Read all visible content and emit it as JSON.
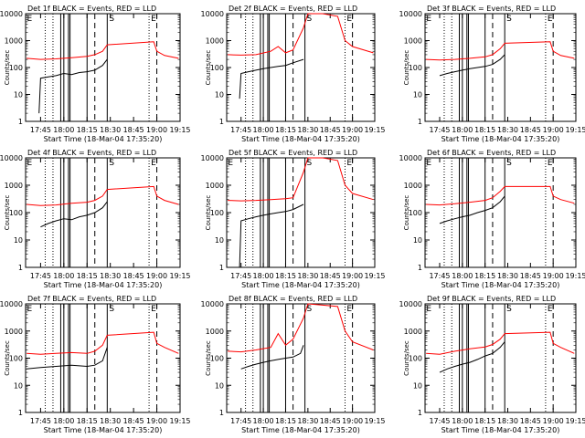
{
  "figure": {
    "x_axis_title": "Start Time (18-Mar-04 17:35:20)",
    "y_axis_title": "Counts/sec",
    "series_names": {
      "events": "BLACK = Events",
      "lld": "RED = LLD"
    },
    "colors": {
      "events": "#000000",
      "lld": "#ff0000",
      "axes": "#000000",
      "background": "#ffffff"
    }
  },
  "chart_data": [
    {
      "type": "line",
      "panel_label": "Det 1f",
      "title": "Det 1f BLACK = Events, RED = LLD",
      "x_tick_labels": [
        "17:45",
        "18:00",
        "18:15",
        "18:30",
        "18:45",
        "19:00",
        "19:15"
      ],
      "y_tick_labels": [
        "1",
        "10",
        "100",
        "1000",
        "10000"
      ],
      "xlim": [
        "17:35:20",
        "19:15"
      ],
      "ylim": [
        1,
        10000
      ],
      "yscale": "log",
      "xlabel": "Start Time (18-Mar-04 17:35:20)",
      "ylabel": "Counts/sec",
      "top_markers": [
        "E",
        "S",
        "E"
      ],
      "series": [
        {
          "name": "BLACK = Events",
          "color": "#000000",
          "x": [
            "17:44",
            "17:45",
            "17:50",
            "17:55",
            "18:00",
            "18:05",
            "18:10",
            "18:15",
            "18:20",
            "18:25",
            "18:28"
          ],
          "y": [
            2,
            40,
            45,
            50,
            60,
            55,
            65,
            70,
            80,
            120,
            200
          ]
        },
        {
          "name": "RED = LLD",
          "color": "#ff0000",
          "x": [
            "17:36",
            "17:45",
            "17:55",
            "18:05",
            "18:15",
            "18:20",
            "18:25",
            "18:28",
            "18:58",
            "19:00",
            "19:05",
            "19:14"
          ],
          "y": [
            220,
            200,
            210,
            230,
            260,
            300,
            400,
            700,
            900,
            400,
            280,
            220
          ]
        }
      ]
    },
    {
      "type": "line",
      "panel_label": "Det 2f",
      "title": "Det 2f BLACK = Events, RED = LLD",
      "x_tick_labels": [
        "17:45",
        "18:00",
        "18:15",
        "18:30",
        "18:45",
        "19:00",
        "19:15"
      ],
      "y_tick_labels": [
        "1",
        "10",
        "100",
        "1000",
        "10000"
      ],
      "xlim": [
        "17:35:20",
        "19:15"
      ],
      "ylim": [
        1,
        10000
      ],
      "yscale": "log",
      "xlabel": "Start Time (18-Mar-04 17:35:20)",
      "ylabel": "Counts/sec",
      "top_markers": [
        "S",
        "E"
      ],
      "series": [
        {
          "name": "BLACK = Events",
          "color": "#000000",
          "x": [
            "17:44",
            "17:45",
            "17:50",
            "17:55",
            "18:00",
            "18:05",
            "18:10",
            "18:15",
            "18:20",
            "18:27"
          ],
          "y": [
            7,
            60,
            70,
            80,
            90,
            100,
            110,
            120,
            150,
            200
          ]
        },
        {
          "name": "RED = LLD",
          "color": "#ff0000",
          "x": [
            "17:36",
            "17:45",
            "17:55",
            "18:05",
            "18:10",
            "18:15",
            "18:20",
            "18:27",
            "18:30",
            "18:40",
            "18:50",
            "18:55",
            "19:00",
            "19:14"
          ],
          "y": [
            300,
            290,
            300,
            400,
            600,
            350,
            450,
            3000,
            10000,
            10000,
            8000,
            1000,
            600,
            350
          ]
        }
      ]
    },
    {
      "type": "line",
      "panel_label": "Det 3f",
      "title": "Det 3f BLACK = Events, RED = LLD",
      "x_tick_labels": [
        "17:45",
        "18:00",
        "18:15",
        "18:30",
        "18:45",
        "19:00",
        "19:15"
      ],
      "y_tick_labels": [
        "1",
        "10",
        "100",
        "1000",
        "10000"
      ],
      "xlim": [
        "17:35:20",
        "19:15"
      ],
      "ylim": [
        1,
        10000
      ],
      "yscale": "log",
      "xlabel": "Start Time (18-Mar-04 17:35:20)",
      "ylabel": "Counts/sec",
      "top_markers": [
        "E",
        "S",
        "E"
      ],
      "series": [
        {
          "name": "BLACK = Events",
          "color": "#000000",
          "x": [
            "17:45",
            "17:50",
            "17:55",
            "18:00",
            "18:05",
            "18:10",
            "18:15",
            "18:20",
            "18:25",
            "18:28"
          ],
          "y": [
            50,
            60,
            70,
            80,
            90,
            100,
            110,
            130,
            200,
            300
          ]
        },
        {
          "name": "RED = LLD",
          "color": "#ff0000",
          "x": [
            "17:36",
            "17:45",
            "17:55",
            "18:05",
            "18:15",
            "18:20",
            "18:25",
            "18:28",
            "18:58",
            "19:00",
            "19:05",
            "19:14"
          ],
          "y": [
            200,
            190,
            200,
            220,
            250,
            300,
            500,
            800,
            900,
            400,
            280,
            220
          ]
        }
      ]
    },
    {
      "type": "line",
      "panel_label": "Det 4f",
      "title": "Det 4f BLACK = Events, RED = LLD",
      "x_tick_labels": [
        "17:45",
        "18:00",
        "18:15",
        "18:30",
        "18:45",
        "19:00",
        "19:15"
      ],
      "y_tick_labels": [
        "1",
        "10",
        "100",
        "1000",
        "10000"
      ],
      "xlim": [
        "17:35:20",
        "19:15"
      ],
      "ylim": [
        1,
        10000
      ],
      "yscale": "log",
      "xlabel": "Start Time (18-Mar-04 17:35:20)",
      "ylabel": "Counts/sec",
      "top_markers": [
        "E",
        "S",
        "E"
      ],
      "series": [
        {
          "name": "BLACK = Events",
          "color": "#000000",
          "x": [
            "17:45",
            "17:50",
            "17:55",
            "18:00",
            "18:05",
            "18:10",
            "18:15",
            "18:20",
            "18:25",
            "18:28"
          ],
          "y": [
            30,
            40,
            50,
            60,
            55,
            70,
            80,
            100,
            150,
            250
          ]
        },
        {
          "name": "RED = LLD",
          "color": "#ff0000",
          "x": [
            "17:36",
            "17:45",
            "17:55",
            "18:05",
            "18:15",
            "18:20",
            "18:25",
            "18:28",
            "18:58",
            "19:00",
            "19:05",
            "19:14"
          ],
          "y": [
            200,
            180,
            190,
            220,
            240,
            280,
            400,
            700,
            900,
            400,
            280,
            200
          ]
        }
      ]
    },
    {
      "type": "line",
      "panel_label": "Det 5f",
      "title": "Det 5f BLACK = Events, RED = LLD",
      "x_tick_labels": [
        "17:45",
        "18:00",
        "18:15",
        "18:30",
        "18:45",
        "19:00",
        "19:15"
      ],
      "y_tick_labels": [
        "1",
        "10",
        "100",
        "1000",
        "10000"
      ],
      "xlim": [
        "17:35:20",
        "19:15"
      ],
      "ylim": [
        1,
        10000
      ],
      "yscale": "log",
      "xlabel": "Start Time (18-Mar-04 17:35:20)",
      "ylabel": "Counts/sec",
      "top_markers": [
        "E",
        "S",
        "E"
      ],
      "series": [
        {
          "name": "BLACK = Events",
          "color": "#000000",
          "x": [
            "17:44",
            "17:45",
            "17:50",
            "17:55",
            "18:00",
            "18:05",
            "18:10",
            "18:15",
            "18:20",
            "18:27"
          ],
          "y": [
            1,
            50,
            60,
            70,
            80,
            90,
            100,
            110,
            130,
            200
          ]
        },
        {
          "name": "RED = LLD",
          "color": "#ff0000",
          "x": [
            "17:36",
            "17:45",
            "17:55",
            "18:05",
            "18:15",
            "18:20",
            "18:27",
            "18:30",
            "18:40",
            "18:50",
            "18:55",
            "19:00",
            "19:14"
          ],
          "y": [
            280,
            270,
            280,
            300,
            320,
            350,
            3000,
            10000,
            10000,
            8000,
            1000,
            500,
            300
          ]
        }
      ]
    },
    {
      "type": "line",
      "panel_label": "Det 6f",
      "title": "Det 6f BLACK = Events, RED = LLD",
      "x_tick_labels": [
        "17:45",
        "18:00",
        "18:15",
        "18:30",
        "18:45",
        "19:00",
        "19:15"
      ],
      "y_tick_labels": [
        "1",
        "10",
        "100",
        "1000",
        "10000"
      ],
      "xlim": [
        "17:35:20",
        "19:15"
      ],
      "ylim": [
        1,
        10000
      ],
      "yscale": "log",
      "xlabel": "Start Time (18-Mar-04 17:35:20)",
      "ylabel": "Counts/sec",
      "top_markers": [
        "E",
        "S",
        "E"
      ],
      "series": [
        {
          "name": "BLACK = Events",
          "color": "#000000",
          "x": [
            "17:45",
            "17:50",
            "17:55",
            "18:00",
            "18:05",
            "18:10",
            "18:15",
            "18:20",
            "18:25",
            "18:28"
          ],
          "y": [
            40,
            50,
            60,
            70,
            80,
            100,
            120,
            150,
            250,
            400
          ]
        },
        {
          "name": "RED = LLD",
          "color": "#ff0000",
          "x": [
            "17:36",
            "17:45",
            "17:55",
            "18:05",
            "18:15",
            "18:20",
            "18:25",
            "18:28",
            "18:58",
            "19:00",
            "19:05",
            "19:14"
          ],
          "y": [
            200,
            190,
            210,
            240,
            280,
            350,
            600,
            900,
            900,
            400,
            300,
            220
          ]
        }
      ]
    },
    {
      "type": "line",
      "panel_label": "Det 7f",
      "title": "Det 7f BLACK = Events, RED = LLD",
      "x_tick_labels": [
        "17:45",
        "18:00",
        "18:15",
        "18:30",
        "18:45",
        "19:00",
        "19:15"
      ],
      "y_tick_labels": [
        "1",
        "10",
        "100",
        "1000",
        "10000"
      ],
      "xlim": [
        "17:35:20",
        "19:15"
      ],
      "ylim": [
        1,
        10000
      ],
      "yscale": "log",
      "xlabel": "Start Time (18-Mar-04 17:35:20)",
      "ylabel": "Counts/sec",
      "top_markers": [
        "E",
        "S",
        "E"
      ],
      "series": [
        {
          "name": "BLACK = Events",
          "color": "#000000",
          "x": [
            "17:36",
            "17:45",
            "17:55",
            "18:05",
            "18:15",
            "18:20",
            "18:25",
            "18:28"
          ],
          "y": [
            40,
            45,
            50,
            55,
            50,
            55,
            80,
            250
          ]
        },
        {
          "name": "RED = LLD",
          "color": "#ff0000",
          "x": [
            "17:36",
            "17:45",
            "17:55",
            "18:05",
            "18:15",
            "18:20",
            "18:25",
            "18:28",
            "18:58",
            "19:00",
            "19:05",
            "19:14"
          ],
          "y": [
            150,
            140,
            150,
            160,
            150,
            180,
            300,
            700,
            900,
            350,
            250,
            150
          ]
        }
      ]
    },
    {
      "type": "line",
      "panel_label": "Det 8f",
      "title": "Det 8f BLACK = Events, RED = LLD",
      "x_tick_labels": [
        "17:45",
        "18:00",
        "18:15",
        "18:30",
        "18:45",
        "19:00",
        "19:15"
      ],
      "y_tick_labels": [
        "1",
        "10",
        "100",
        "1000",
        "10000"
      ],
      "xlim": [
        "17:35:20",
        "19:15"
      ],
      "ylim": [
        1,
        10000
      ],
      "yscale": "log",
      "xlabel": "Start Time (18-Mar-04 17:35:20)",
      "ylabel": "Counts/sec",
      "top_markers": [
        "S",
        "E"
      ],
      "series": [
        {
          "name": "BLACK = Events",
          "color": "#000000",
          "x": [
            "17:45",
            "17:50",
            "17:55",
            "18:00",
            "18:05",
            "18:10",
            "18:15",
            "18:20",
            "18:25",
            "18:27"
          ],
          "y": [
            40,
            50,
            60,
            70,
            80,
            90,
            100,
            110,
            150,
            300
          ]
        },
        {
          "name": "RED = LLD",
          "color": "#ff0000",
          "x": [
            "17:36",
            "17:45",
            "17:55",
            "18:05",
            "18:10",
            "18:15",
            "18:20",
            "18:27",
            "18:30",
            "18:40",
            "18:50",
            "18:55",
            "19:00",
            "19:14"
          ],
          "y": [
            180,
            170,
            200,
            250,
            800,
            300,
            500,
            3000,
            10000,
            9000,
            8000,
            1000,
            400,
            200
          ]
        }
      ]
    },
    {
      "type": "line",
      "panel_label": "Det 9f",
      "title": "Det 9f BLACK = Events, RED = LLD",
      "x_tick_labels": [
        "17:45",
        "18:00",
        "18:15",
        "18:30",
        "18:45",
        "19:00",
        "19:15"
      ],
      "y_tick_labels": [
        "1",
        "10",
        "100",
        "1000",
        "10000"
      ],
      "xlim": [
        "17:35:20",
        "19:15"
      ],
      "ylim": [
        1,
        10000
      ],
      "yscale": "log",
      "xlabel": "Start Time (18-Mar-04 17:35:20)",
      "ylabel": "Counts/sec",
      "top_markers": [
        "E",
        "S",
        "E"
      ],
      "series": [
        {
          "name": "BLACK = Events",
          "color": "#000000",
          "x": [
            "17:45",
            "17:50",
            "17:55",
            "18:00",
            "18:05",
            "18:10",
            "18:15",
            "18:20",
            "18:25",
            "18:28"
          ],
          "y": [
            30,
            40,
            50,
            60,
            70,
            90,
            120,
            150,
            250,
            400
          ]
        },
        {
          "name": "RED = LLD",
          "color": "#ff0000",
          "x": [
            "17:36",
            "17:45",
            "17:55",
            "18:05",
            "18:15",
            "18:20",
            "18:25",
            "18:28",
            "18:58",
            "19:00",
            "19:05",
            "19:14"
          ],
          "y": [
            150,
            140,
            180,
            220,
            260,
            320,
            500,
            800,
            900,
            350,
            250,
            150
          ]
        }
      ]
    }
  ]
}
